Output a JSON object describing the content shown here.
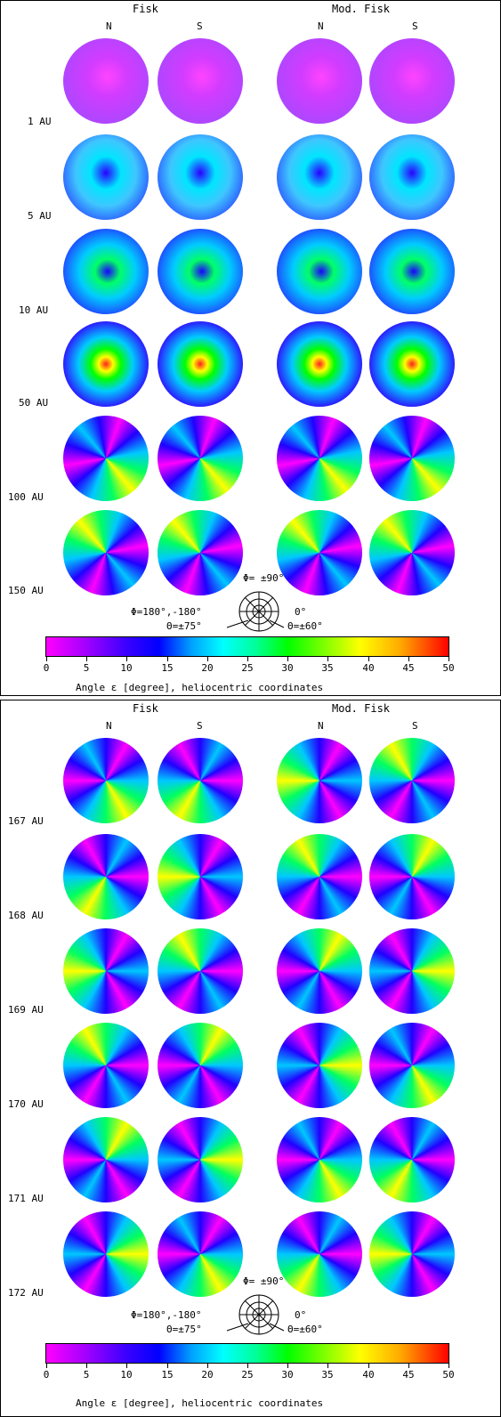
{
  "panels": [
    {
      "col_headers": {
        "fisk": "Fisk",
        "mod_fisk": "Mod. Fisk"
      },
      "sub_headers": [
        "N",
        "S",
        "N",
        "S"
      ],
      "row_labels": [
        "1 AU",
        "5 AU",
        "10 AU",
        "50 AU",
        "100 AU",
        "150 AU"
      ],
      "legend": {
        "phi_top": "Φ= ±90°",
        "phi_left": "Φ=180°,-180°",
        "phi_right": "0°",
        "theta_left": "Θ=±75°",
        "theta_right": "Θ=±60°"
      },
      "colorbar": {
        "ticks": [
          "0",
          "5",
          "10",
          "15",
          "20",
          "25",
          "30",
          "35",
          "40",
          "45",
          "50"
        ],
        "label": "Angle ε [degree], heliocentric coordinates"
      }
    },
    {
      "col_headers": {
        "fisk": "Fisk",
        "mod_fisk": "Mod. Fisk"
      },
      "sub_headers": [
        "N",
        "S",
        "N",
        "S"
      ],
      "row_labels": [
        "167 AU",
        "168 AU",
        "169 AU",
        "170 AU",
        "171 AU",
        "172 AU"
      ],
      "legend": {
        "phi_top": "Φ= ±90°",
        "phi_left": "Φ=180°,-180°",
        "phi_right": "0°",
        "theta_left": "Θ=±75°",
        "theta_right": "Θ=±60°"
      },
      "colorbar": {
        "ticks": [
          "0",
          "5",
          "10",
          "15",
          "20",
          "25",
          "30",
          "35",
          "40",
          "45",
          "50"
        ],
        "label": "Angle ε [degree], heliocentric coordinates"
      }
    }
  ],
  "colors": {
    "scale": [
      "#ff00ff",
      "#3a00ff",
      "#0000ff",
      "#00ffff",
      "#00ff00",
      "#ffff00",
      "#ff0000"
    ]
  }
}
